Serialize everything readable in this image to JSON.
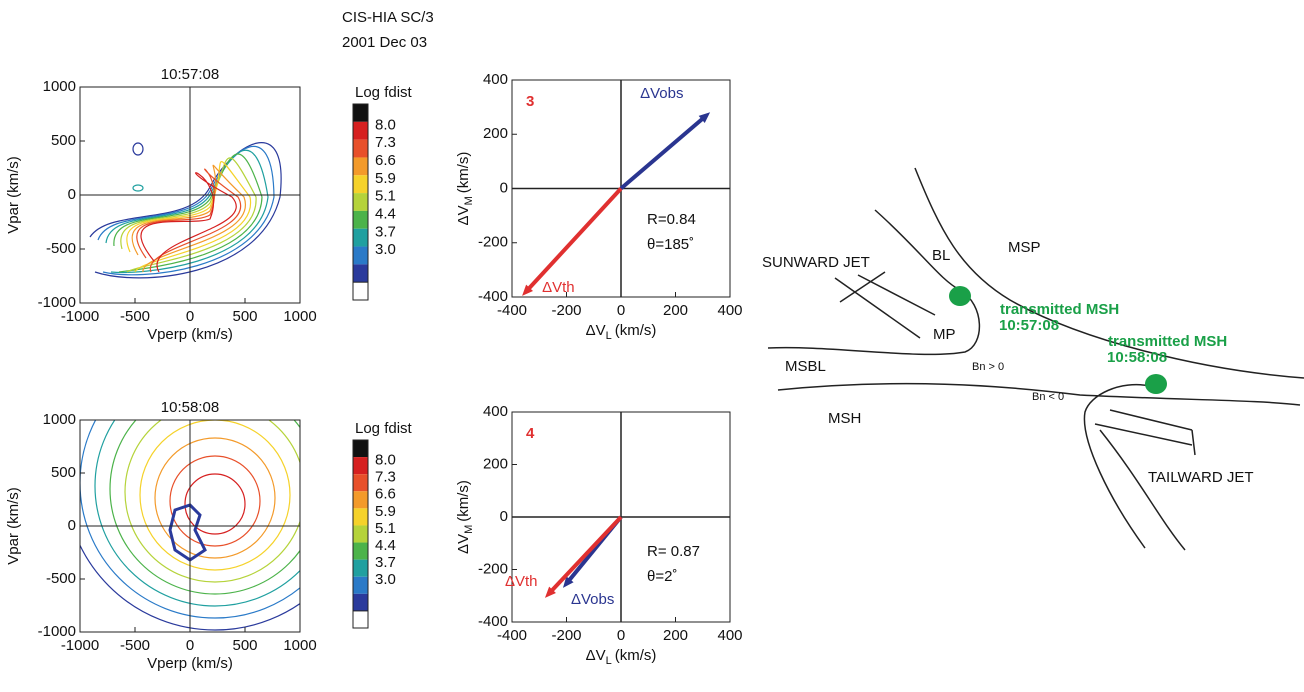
{
  "header": {
    "instrument": "CIS-HIA  SC/3",
    "date": "2001 Dec 03"
  },
  "contour_plots": [
    {
      "title": "10:57:08",
      "xlabel": "Vperp (km/s)",
      "ylabel": "Vpar (km/s)",
      "xlim": [
        -1000,
        1000
      ],
      "ylim": [
        -1000,
        1000
      ],
      "xticks": [
        -1000,
        -500,
        0,
        500,
        1000
      ],
      "yticks": [
        -1000,
        -500,
        0,
        500,
        1000
      ]
    },
    {
      "title": "10:58:08",
      "xlabel": "Vperp (km/s)",
      "ylabel": "Vpar (km/s)",
      "xlim": [
        -1000,
        1000
      ],
      "ylim": [
        -1000,
        1000
      ],
      "xticks": [
        -1000,
        -500,
        0,
        500,
        1000
      ],
      "yticks": [
        -1000,
        -500,
        0,
        500,
        1000
      ]
    }
  ],
  "colorbar": {
    "title": "Log fdist",
    "colors": [
      "#111111",
      "#d62020",
      "#e8502a",
      "#f39a2a",
      "#f5d22a",
      "#b5d33a",
      "#4cb34a",
      "#20a0a0",
      "#2a7ac8",
      "#2a3a9c",
      "#ffffff"
    ],
    "ticks": [
      {
        "value": 8.0,
        "label": "8.0"
      },
      {
        "value": 7.3,
        "label": "7.3"
      },
      {
        "value": 6.6,
        "label": "6.6"
      },
      {
        "value": 5.9,
        "label": "5.9"
      },
      {
        "value": 5.1,
        "label": "5.1"
      },
      {
        "value": 4.4,
        "label": "4.4"
      },
      {
        "value": 3.7,
        "label": "3.7"
      },
      {
        "value": 3.0,
        "label": "3.0"
      }
    ]
  },
  "vector_plots": [
    {
      "panel": "3",
      "xlabel": [
        "ΔV",
        "L",
        "(km/s)"
      ],
      "ylabel": [
        "ΔV",
        "M",
        "(km/s)"
      ],
      "xlim": [
        -400,
        400
      ],
      "ylim": [
        -400,
        400
      ],
      "xticks": [
        -400,
        -200,
        0,
        200,
        400
      ],
      "yticks": [
        -400,
        -200,
        0,
        200,
        400
      ],
      "arrows": [
        {
          "name": "ΔVobs",
          "color": "#2a3590",
          "x": 327,
          "y": 281
        },
        {
          "name": "ΔVth",
          "color": "#e03030",
          "x": -363,
          "y": -396
        }
      ],
      "annotations": [
        "R=0.84",
        "θ=185˚"
      ]
    },
    {
      "panel": "4",
      "xlabel": [
        "ΔV",
        "L",
        "(km/s)"
      ],
      "ylabel": [
        "ΔV",
        "M",
        "(km/s)"
      ],
      "xlim": [
        -400,
        400
      ],
      "ylim": [
        -400,
        400
      ],
      "xticks": [
        -400,
        -200,
        0,
        200,
        400
      ],
      "yticks": [
        -400,
        -200,
        0,
        200,
        400
      ],
      "arrows": [
        {
          "name": "ΔVobs",
          "color": "#2a3590",
          "x": -213,
          "y": -270
        },
        {
          "name": "ΔVth",
          "color": "#e03030",
          "x": -279,
          "y": -308
        }
      ],
      "annotations": [
        "R= 0.87",
        "θ=2˚"
      ]
    }
  ],
  "diagram": {
    "labels": [
      "MSP",
      "BL",
      "SUNWARD JET",
      "MP",
      "MSBL",
      "MSH",
      "TAILWARD JET"
    ],
    "small_labels": [
      "Bn > 0",
      "Bn < 0"
    ],
    "events": [
      {
        "label": "transmitted MSH",
        "time": "10:57:08"
      },
      {
        "label": "transmitted MSH",
        "time": "10:58:08"
      }
    ]
  }
}
